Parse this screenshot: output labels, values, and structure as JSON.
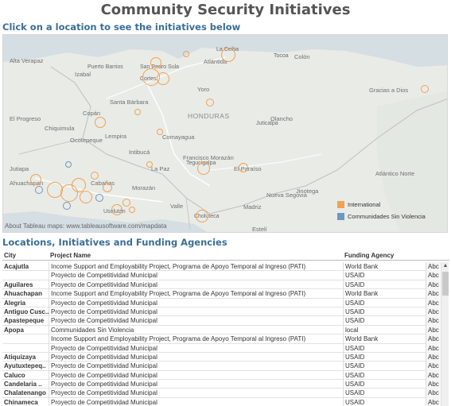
{
  "dashboard": {
    "title": "Community Security Initiatives",
    "map_instruction": "Click on a location to see the initiatives below",
    "map_attribution": "About Tableau maps: www.tableausoftware.com/mapdata",
    "table_title": "Locations, Initiatives and Funding Agencies"
  },
  "map": {
    "places": [
      {
        "label": "Alta Verapaz",
        "style": "dept"
      },
      {
        "label": "Izabal",
        "style": "dept"
      },
      {
        "label": "Puerto Barrios",
        "style": ""
      },
      {
        "label": "San Pedro Sula",
        "style": ""
      },
      {
        "label": "Cortes",
        "style": ""
      },
      {
        "label": "La Ceiba",
        "style": ""
      },
      {
        "label": "Atlántida",
        "style": "dept"
      },
      {
        "label": "Tocoa",
        "style": ""
      },
      {
        "label": "Colón",
        "style": "dept"
      },
      {
        "label": "Gracias a Dios",
        "style": "dept"
      },
      {
        "label": "Yoro",
        "style": "dept"
      },
      {
        "label": "Santa Bárbara",
        "style": "dept"
      },
      {
        "label": "El Progreso",
        "style": "dept"
      },
      {
        "label": "Copán",
        "style": "dept"
      },
      {
        "label": "Chiquimula",
        "style": "dept"
      },
      {
        "label": "Ocotepeque",
        "style": "dept"
      },
      {
        "label": "Lempira",
        "style": "dept"
      },
      {
        "label": "HONDURAS",
        "style": "big"
      },
      {
        "label": "Olancho",
        "style": "dept"
      },
      {
        "label": "Juticalpa",
        "style": ""
      },
      {
        "label": "Comayagua",
        "style": "dept"
      },
      {
        "label": "Intibucá",
        "style": "dept"
      },
      {
        "label": "La Paz",
        "style": "dept"
      },
      {
        "label": "Francisco Morazán",
        "style": "dept"
      },
      {
        "label": "Tegucigalpa",
        "style": ""
      },
      {
        "label": "El Paraíso",
        "style": "dept"
      },
      {
        "label": "Jutiapa",
        "style": "dept"
      },
      {
        "label": "Ahuachapan",
        "style": "dept"
      },
      {
        "label": "Cabañas",
        "style": "dept"
      },
      {
        "label": "Morazán",
        "style": "dept"
      },
      {
        "label": "Valle",
        "style": "dept"
      },
      {
        "label": "Choluteca",
        "style": "dept"
      },
      {
        "label": "Usulután",
        "style": ""
      },
      {
        "label": "Nueva Segovia",
        "style": "dept"
      },
      {
        "label": "Jinotega",
        "style": "dept"
      },
      {
        "label": "Atlántico Norte",
        "style": "dept"
      },
      {
        "label": "Madriz",
        "style": "dept"
      },
      {
        "label": "Estelí",
        "style": "dept"
      }
    ],
    "legend": [
      {
        "label": "International",
        "color": "#f0a254"
      },
      {
        "label": "Communidades Sin Violencia",
        "color": "#6f96c4"
      }
    ]
  },
  "table": {
    "headers": [
      "City",
      "Project Name",
      "Funding Agency",
      ""
    ],
    "rows": [
      {
        "city": "Acajutla",
        "project": "Income Support and Employability Project, Programa de Apoyo Temporal al Ingreso (PATI)",
        "agency": "World Bank",
        "abc": "Abc"
      },
      {
        "city": "",
        "project": "Proyecto de Competitividad Municipal",
        "agency": "USAID",
        "abc": "Abc"
      },
      {
        "city": "Aguilares",
        "project": "Proyecto de Competitividad Municipal",
        "agency": "USAID",
        "abc": "Abc"
      },
      {
        "city": "Ahuachapan",
        "project": "Income Support and Employability Project, Programa de Apoyo Temporal al Ingreso (PATI)",
        "agency": "World Bank",
        "abc": "Abc"
      },
      {
        "city": "Alegria",
        "project": "Proyecto de Competitividad Municipal",
        "agency": "USAID",
        "abc": "Abc"
      },
      {
        "city": "Antiguo Cusc..",
        "project": "Proyecto de Competitividad Municipal",
        "agency": "USAID",
        "abc": "Abc"
      },
      {
        "city": "Apastepeque",
        "project": "Proyecto de Competitividad Municipal",
        "agency": "USAID",
        "abc": "Abc"
      },
      {
        "city": "Apopa",
        "project": "Communidades Sin Violencia",
        "agency": "local",
        "abc": "Abc"
      },
      {
        "city": "",
        "project": "Income Support and Employability Project, Programa de Apoyo Temporal al Ingreso (PATI)",
        "agency": "World Bank",
        "abc": "Abc"
      },
      {
        "city": "",
        "project": "Proyecto de Competitividad Municipal",
        "agency": "USAID",
        "abc": "Abc"
      },
      {
        "city": "Atiquizaya",
        "project": "Proyecto de Competitividad Municipal",
        "agency": "USAID",
        "abc": "Abc"
      },
      {
        "city": "Ayutuxtepeq..",
        "project": "Proyecto de Competitividad Municipal",
        "agency": "USAID",
        "abc": "Abc"
      },
      {
        "city": "Caluco",
        "project": "Proyecto de Competitividad Municipal",
        "agency": "USAID",
        "abc": "Abc"
      },
      {
        "city": "Candelaria ..",
        "project": "Proyecto de Competitividad Municipal",
        "agency": "USAID",
        "abc": "Abc"
      },
      {
        "city": "Chalatenango",
        "project": "Proyecto de Competitividad Municipal",
        "agency": "USAID",
        "abc": "Abc"
      },
      {
        "city": "Chinameca",
        "project": "Proyecto de Competitividad Municipal",
        "agency": "USAID",
        "abc": "Abc"
      }
    ]
  }
}
